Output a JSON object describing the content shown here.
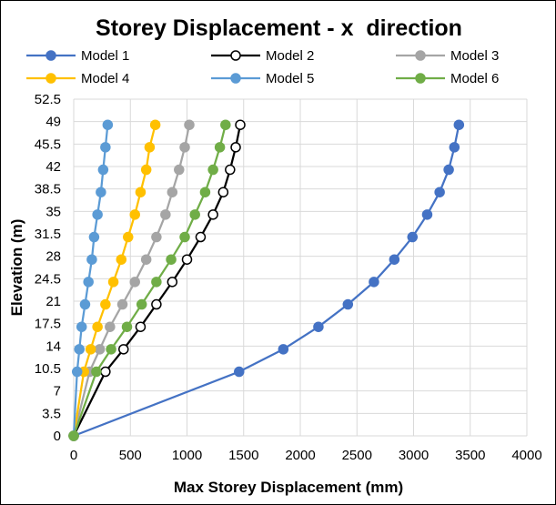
{
  "chart_data": {
    "type": "scatter",
    "title": "Storey Displacement - x  direction",
    "xlabel": "Max Storey Displacement (mm)",
    "ylabel": "Elevation (m)",
    "xlim": [
      0,
      4000
    ],
    "ylim": [
      0,
      52.5
    ],
    "x_ticks": [
      "0",
      "500",
      "1000",
      "1500",
      "2000",
      "2500",
      "3000",
      "3500",
      "4000"
    ],
    "y_ticks": [
      "0",
      "3.5",
      "7",
      "10.5",
      "14",
      "17.5",
      "21",
      "24.5",
      "28",
      "31.5",
      "35",
      "38.5",
      "42",
      "45.5",
      "49",
      "52.5"
    ],
    "grid": true,
    "legend_position": "top",
    "y": [
      0,
      10,
      13.5,
      17,
      20.5,
      24,
      27.5,
      31,
      34.5,
      38,
      41.5,
      45,
      48.5
    ],
    "series": [
      {
        "name": "Model 1",
        "color": "#4472C4",
        "marker_fill": "#4472C4",
        "x": [
          0,
          1460,
          1850,
          2160,
          2420,
          2650,
          2830,
          2990,
          3120,
          3230,
          3310,
          3360,
          3400
        ]
      },
      {
        "name": "Model 2",
        "color": "#000000",
        "marker_fill": "#ffffff",
        "x": [
          0,
          280,
          440,
          590,
          730,
          870,
          1000,
          1120,
          1230,
          1320,
          1380,
          1430,
          1470
        ]
      },
      {
        "name": "Model 3",
        "color": "#A5A5A5",
        "marker_fill": "#A5A5A5",
        "x": [
          0,
          140,
          230,
          320,
          430,
          540,
          640,
          730,
          810,
          870,
          930,
          980,
          1020
        ]
      },
      {
        "name": "Model 4",
        "color": "#FFC000",
        "marker_fill": "#FFC000",
        "x": [
          0,
          90,
          150,
          210,
          280,
          350,
          420,
          480,
          540,
          590,
          640,
          670,
          720
        ]
      },
      {
        "name": "Model 5",
        "color": "#5B9BD5",
        "marker_fill": "#5B9BD5",
        "x": [
          0,
          30,
          50,
          70,
          100,
          130,
          160,
          180,
          210,
          240,
          260,
          280,
          300
        ]
      },
      {
        "name": "Model 6",
        "color": "#70AD47",
        "marker_fill": "#70AD47",
        "x": [
          0,
          200,
          330,
          470,
          600,
          730,
          860,
          980,
          1070,
          1160,
          1230,
          1290,
          1340
        ]
      }
    ]
  }
}
